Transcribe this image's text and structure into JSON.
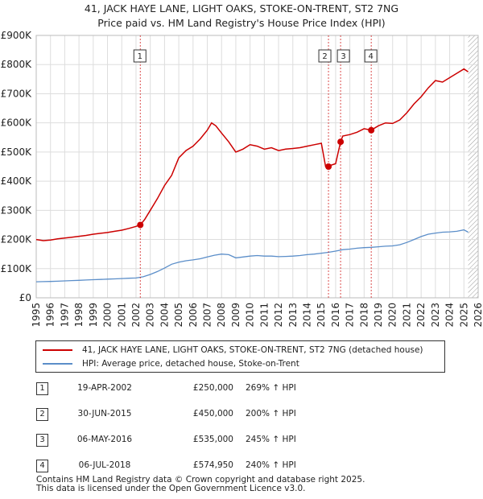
{
  "title": "41, JACK HAYE LANE, LIGHT OAKS, STOKE-ON-TRENT, ST2 7NG",
  "subtitle": "Price paid vs. HM Land Registry's House Price Index (HPI)",
  "colors": {
    "property": "#cc0000",
    "hpi": "#5b8ec9",
    "marker_line": "#cc0000",
    "future_hatch": "#999999"
  },
  "chart_data": {
    "type": "line",
    "xlim": [
      1995,
      2026
    ],
    "ylim": [
      0,
      900000
    ],
    "yticks": [
      {
        "value": 0,
        "label": "£0"
      },
      {
        "value": 100000,
        "label": "£100K"
      },
      {
        "value": 200000,
        "label": "£200K"
      },
      {
        "value": 300000,
        "label": "£300K"
      },
      {
        "value": 400000,
        "label": "£400K"
      },
      {
        "value": 500000,
        "label": "£500K"
      },
      {
        "value": 600000,
        "label": "£600K"
      },
      {
        "value": 700000,
        "label": "£700K"
      },
      {
        "value": 800000,
        "label": "£800K"
      },
      {
        "value": 900000,
        "label": "£900K"
      }
    ],
    "xticks": [
      "1995",
      "1996",
      "1997",
      "1998",
      "1999",
      "2000",
      "2001",
      "2002",
      "2003",
      "2004",
      "2005",
      "2006",
      "2007",
      "2008",
      "2009",
      "2010",
      "2011",
      "2012",
      "2013",
      "2014",
      "2015",
      "2016",
      "2017",
      "2018",
      "2019",
      "2020",
      "2021",
      "2022",
      "2023",
      "2024",
      "2025",
      "2026"
    ],
    "grid": true,
    "data_end_year": 2025.3,
    "series": [
      {
        "name": "41, JACK HAYE LANE, LIGHT OAKS, STOKE-ON-TRENT, ST2 7NG (detached house)",
        "x": [
          1995.0,
          1995.5,
          1996.0,
          1996.5,
          1997.0,
          1997.5,
          1998.0,
          1998.5,
          1999.0,
          1999.5,
          2000.0,
          2000.5,
          2001.0,
          2001.5,
          2002.0,
          2002.3,
          2002.6,
          2003.0,
          2003.5,
          2004.0,
          2004.5,
          2005.0,
          2005.5,
          2006.0,
          2006.5,
          2007.0,
          2007.3,
          2007.6,
          2008.0,
          2008.5,
          2009.0,
          2009.5,
          2010.0,
          2010.5,
          2011.0,
          2011.5,
          2012.0,
          2012.5,
          2013.0,
          2013.5,
          2014.0,
          2014.5,
          2015.0,
          2015.3,
          2015.45,
          2015.5,
          2016.0,
          2016.35,
          2016.5,
          2017.0,
          2017.5,
          2018.0,
          2018.5,
          2019.0,
          2019.5,
          2020.0,
          2020.5,
          2021.0,
          2021.5,
          2022.0,
          2022.5,
          2023.0,
          2023.5,
          2024.0,
          2024.5,
          2025.0,
          2025.3
        ],
        "values": [
          200000,
          196000,
          198000,
          202000,
          205000,
          208000,
          211000,
          214000,
          218000,
          221000,
          224000,
          228000,
          232000,
          238000,
          245000,
          250000,
          268000,
          300000,
          340000,
          385000,
          420000,
          480000,
          505000,
          520000,
          545000,
          575000,
          600000,
          590000,
          565000,
          535000,
          500000,
          510000,
          525000,
          520000,
          510000,
          515000,
          505000,
          510000,
          512000,
          515000,
          520000,
          525000,
          530000,
          450000,
          450000,
          452000,
          460000,
          535000,
          555000,
          560000,
          568000,
          580000,
          574950,
          590000,
          600000,
          598000,
          610000,
          635000,
          665000,
          690000,
          720000,
          745000,
          740000,
          755000,
          770000,
          785000,
          775000
        ]
      },
      {
        "name": "HPI: Average price, detached house, Stoke-on-Trent",
        "x": [
          1995.0,
          1995.5,
          1996.0,
          1996.5,
          1997.0,
          1997.5,
          1998.0,
          1998.5,
          1999.0,
          1999.5,
          2000.0,
          2000.5,
          2001.0,
          2001.5,
          2002.0,
          2002.5,
          2003.0,
          2003.5,
          2004.0,
          2004.5,
          2005.0,
          2005.5,
          2006.0,
          2006.5,
          2007.0,
          2007.5,
          2008.0,
          2008.5,
          2009.0,
          2009.5,
          2010.0,
          2010.5,
          2011.0,
          2011.5,
          2012.0,
          2012.5,
          2013.0,
          2013.5,
          2014.0,
          2014.5,
          2015.0,
          2015.5,
          2016.0,
          2016.5,
          2017.0,
          2017.5,
          2018.0,
          2018.5,
          2019.0,
          2019.5,
          2020.0,
          2020.5,
          2021.0,
          2021.5,
          2022.0,
          2022.5,
          2023.0,
          2023.5,
          2024.0,
          2024.5,
          2025.0,
          2025.3
        ],
        "values": [
          55000,
          55500,
          56000,
          57000,
          58000,
          59000,
          60000,
          61000,
          62000,
          63000,
          64000,
          65000,
          66000,
          67000,
          68000,
          72000,
          80000,
          90000,
          102000,
          115000,
          122000,
          127000,
          130000,
          134000,
          140000,
          146000,
          150000,
          148000,
          137000,
          140000,
          143000,
          145000,
          143000,
          143000,
          141000,
          142000,
          143000,
          145000,
          148000,
          150000,
          153000,
          156000,
          160000,
          165000,
          167000,
          170000,
          172000,
          173000,
          175000,
          177000,
          178000,
          182000,
          190000,
          200000,
          210000,
          218000,
          222000,
          225000,
          226000,
          228000,
          233000,
          225000
        ]
      }
    ],
    "sales": [
      {
        "id": "1",
        "x": 2002.3,
        "value": 250000
      },
      {
        "id": "2",
        "x": 2015.5,
        "value": 450000
      },
      {
        "id": "3",
        "x": 2016.35,
        "value": 535000
      },
      {
        "id": "4",
        "x": 2018.5,
        "value": 574950
      }
    ]
  },
  "legend": {
    "property": "41, JACK HAYE LANE, LIGHT OAKS, STOKE-ON-TRENT, ST2 7NG (detached house)",
    "hpi": "HPI: Average price, detached house, Stoke-on-Trent"
  },
  "sales_table": [
    {
      "num": "1",
      "date": "19-APR-2002",
      "price": "£250,000",
      "hpi": "269% ↑ HPI"
    },
    {
      "num": "2",
      "date": "30-JUN-2015",
      "price": "£450,000",
      "hpi": "200% ↑ HPI"
    },
    {
      "num": "3",
      "date": "06-MAY-2016",
      "price": "£535,000",
      "hpi": "245% ↑ HPI"
    },
    {
      "num": "4",
      "date": "06-JUL-2018",
      "price": "£574,950",
      "hpi": "240% ↑ HPI"
    }
  ],
  "footer": {
    "line1": "Contains HM Land Registry data © Crown copyright and database right 2025.",
    "line2": "This data is licensed under the Open Government Licence v3.0."
  }
}
